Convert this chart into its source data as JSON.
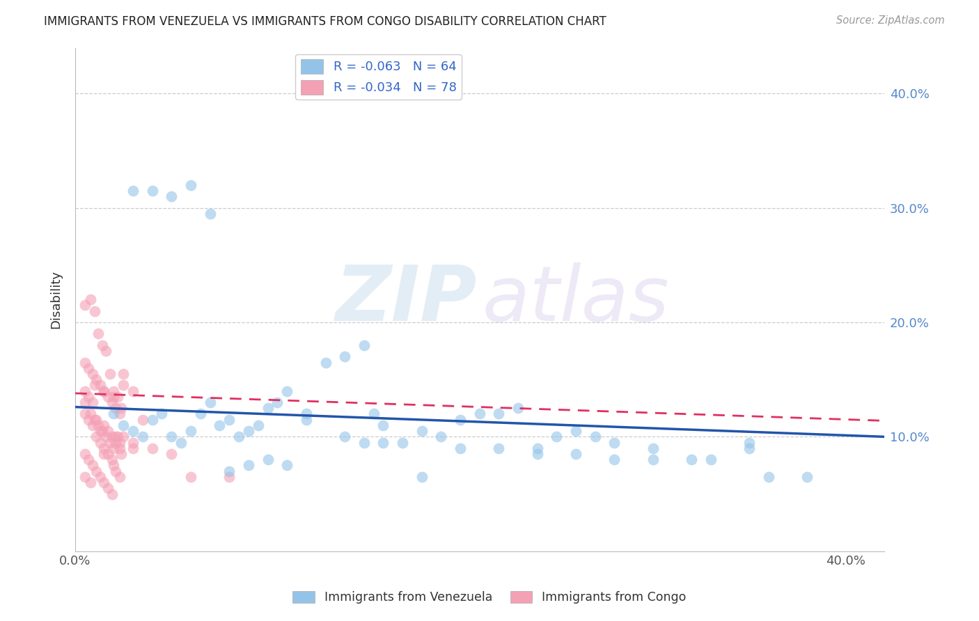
{
  "title": "IMMIGRANTS FROM VENEZUELA VS IMMIGRANTS FROM CONGO DISABILITY CORRELATION CHART",
  "source": "Source: ZipAtlas.com",
  "ylabel": "Disability",
  "xlim": [
    0.0,
    0.42
  ],
  "ylim": [
    0.0,
    0.44
  ],
  "yticks": [
    0.1,
    0.2,
    0.3,
    0.4
  ],
  "ytick_labels": [
    "10.0%",
    "20.0%",
    "30.0%",
    "40.0%"
  ],
  "xticks": [
    0.0,
    0.1,
    0.2,
    0.3,
    0.4
  ],
  "watermark_zip": "ZIP",
  "watermark_atlas": "atlas",
  "venezuela_color": "#93c4e8",
  "congo_color": "#f4a0b5",
  "venezuela_line_color": "#2255aa",
  "congo_line_color": "#e03060",
  "venezuela_R": -0.063,
  "venezuela_N": 64,
  "congo_R": -0.034,
  "congo_N": 78,
  "legend_text_color": "#3366cc",
  "right_axis_color": "#5588cc",
  "background_color": "#ffffff",
  "grid_color": "#cccccc",
  "title_color": "#222222",
  "axis_label_color": "#333333",
  "venezuela_x": [
    0.02,
    0.025,
    0.03,
    0.035,
    0.04,
    0.045,
    0.05,
    0.055,
    0.06,
    0.065,
    0.07,
    0.075,
    0.08,
    0.085,
    0.09,
    0.095,
    0.1,
    0.105,
    0.11,
    0.12,
    0.13,
    0.14,
    0.15,
    0.155,
    0.16,
    0.17,
    0.18,
    0.19,
    0.2,
    0.21,
    0.22,
    0.23,
    0.24,
    0.25,
    0.26,
    0.27,
    0.28,
    0.3,
    0.32,
    0.35,
    0.03,
    0.04,
    0.05,
    0.06,
    0.07,
    0.08,
    0.09,
    0.1,
    0.11,
    0.12,
    0.14,
    0.15,
    0.16,
    0.18,
    0.2,
    0.22,
    0.24,
    0.26,
    0.28,
    0.3,
    0.33,
    0.36,
    0.38,
    0.35
  ],
  "venezuela_y": [
    0.12,
    0.11,
    0.105,
    0.1,
    0.115,
    0.12,
    0.1,
    0.095,
    0.105,
    0.12,
    0.13,
    0.11,
    0.115,
    0.1,
    0.105,
    0.11,
    0.125,
    0.13,
    0.14,
    0.115,
    0.165,
    0.17,
    0.18,
    0.12,
    0.11,
    0.095,
    0.105,
    0.1,
    0.115,
    0.12,
    0.12,
    0.125,
    0.09,
    0.1,
    0.105,
    0.1,
    0.095,
    0.08,
    0.08,
    0.095,
    0.315,
    0.315,
    0.31,
    0.32,
    0.295,
    0.07,
    0.075,
    0.08,
    0.075,
    0.12,
    0.1,
    0.095,
    0.095,
    0.065,
    0.09,
    0.09,
    0.085,
    0.085,
    0.08,
    0.09,
    0.08,
    0.065,
    0.065,
    0.09
  ],
  "congo_x": [
    0.005,
    0.008,
    0.01,
    0.012,
    0.014,
    0.016,
    0.018,
    0.02,
    0.022,
    0.024,
    0.005,
    0.008,
    0.01,
    0.012,
    0.014,
    0.016,
    0.018,
    0.02,
    0.022,
    0.024,
    0.005,
    0.007,
    0.009,
    0.011,
    0.013,
    0.015,
    0.017,
    0.019,
    0.021,
    0.023,
    0.005,
    0.007,
    0.009,
    0.011,
    0.013,
    0.015,
    0.017,
    0.019,
    0.021,
    0.023,
    0.005,
    0.007,
    0.009,
    0.011,
    0.013,
    0.015,
    0.017,
    0.019,
    0.021,
    0.023,
    0.005,
    0.007,
    0.009,
    0.011,
    0.013,
    0.015,
    0.017,
    0.019,
    0.021,
    0.023,
    0.025,
    0.03,
    0.035,
    0.04,
    0.05,
    0.06,
    0.08,
    0.01,
    0.015,
    0.02,
    0.025,
    0.03,
    0.015,
    0.02,
    0.025,
    0.03,
    0.005,
    0.008
  ],
  "congo_y": [
    0.215,
    0.22,
    0.21,
    0.19,
    0.18,
    0.175,
    0.155,
    0.14,
    0.135,
    0.125,
    0.13,
    0.12,
    0.115,
    0.11,
    0.105,
    0.1,
    0.095,
    0.09,
    0.1,
    0.085,
    0.12,
    0.115,
    0.11,
    0.1,
    0.095,
    0.09,
    0.085,
    0.08,
    0.1,
    0.095,
    0.14,
    0.135,
    0.13,
    0.115,
    0.105,
    0.11,
    0.105,
    0.1,
    0.095,
    0.09,
    0.085,
    0.08,
    0.075,
    0.07,
    0.065,
    0.06,
    0.055,
    0.05,
    0.07,
    0.065,
    0.165,
    0.16,
    0.155,
    0.15,
    0.145,
    0.14,
    0.135,
    0.13,
    0.125,
    0.12,
    0.155,
    0.14,
    0.115,
    0.09,
    0.085,
    0.065,
    0.065,
    0.145,
    0.14,
    0.135,
    0.145,
    0.09,
    0.085,
    0.075,
    0.1,
    0.095,
    0.065,
    0.06
  ],
  "ven_line_x0": 0.0,
  "ven_line_x1": 0.42,
  "ven_line_y0": 0.126,
  "ven_line_y1": 0.1,
  "con_line_x0": 0.0,
  "con_line_x1": 0.42,
  "con_line_y0": 0.138,
  "con_line_y1": 0.114
}
